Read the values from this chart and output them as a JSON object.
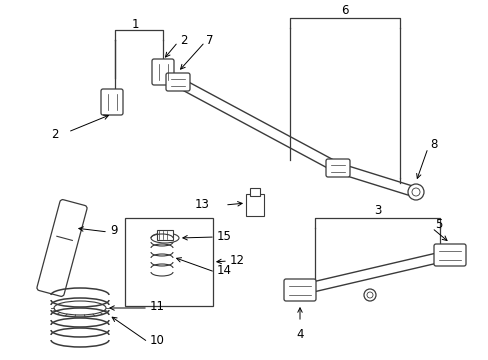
{
  "bg_color": "#ffffff",
  "lc": "#3a3a3a",
  "tc": "#000000",
  "figsize": [
    4.89,
    3.6
  ],
  "dpi": 100
}
